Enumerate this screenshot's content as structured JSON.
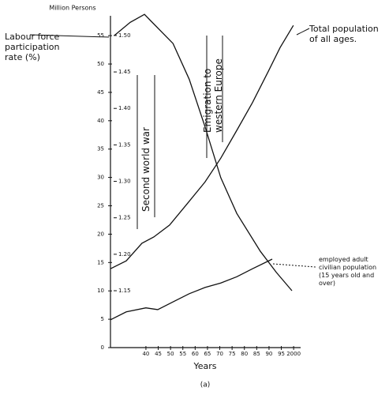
{
  "chart_data": {
    "type": "line",
    "y_label": "Million Persons",
    "x_label": "Years",
    "caption": "(a)",
    "event_labels": [
      "Second world war",
      "Emigration to western Europe"
    ],
    "xlim": [
      1925.6,
      2003
    ],
    "xticks": [
      {
        "value": 1940,
        "label": "40"
      },
      {
        "value": 1945,
        "label": "45"
      },
      {
        "value": 1950,
        "label": "50"
      },
      {
        "value": 1955,
        "label": "55"
      },
      {
        "value": 1960,
        "label": "60"
      },
      {
        "value": 1965,
        "label": "65"
      },
      {
        "value": 1970,
        "label": "70"
      },
      {
        "value": 1975,
        "label": "75"
      },
      {
        "value": 1980,
        "label": "80"
      },
      {
        "value": 1985,
        "label": "85"
      },
      {
        "value": 1990,
        "label": "90"
      },
      {
        "value": 1995,
        "label": "95"
      },
      2000
    ],
    "ylim": [
      0,
      58.5
    ],
    "yticks": [
      0,
      5,
      10,
      15,
      20,
      25,
      30,
      35,
      40,
      45,
      50,
      55
    ],
    "y2lim": [
      1.072,
      1.527
    ],
    "y2ticks": [
      {
        "value": 1.5,
        "label": "1.50"
      },
      1.45,
      {
        "value": 1.4,
        "label": "1.40"
      },
      1.35,
      {
        "value": 1.3,
        "label": "1.30"
      },
      1.25,
      {
        "value": 1.2,
        "label": "1.20"
      },
      1.15
    ],
    "series": [
      {
        "name": "Labour force participation rate (%)",
        "color": "#111",
        "axis": "y2",
        "x": [
          1927.2,
          1933.6,
          1939.4,
          1942,
          1951,
          1957.6,
          1964,
          1970.4,
          1976.9,
          1986.5,
          1993,
          1999.3
        ],
        "values": [
          1.5,
          1.518,
          1.529,
          1.52,
          1.489,
          1.44,
          1.375,
          1.305,
          1.256,
          1.204,
          1.175,
          1.15
        ]
      },
      {
        "name": "Total population of all ages.",
        "color": "#111",
        "x": [
          1925.6,
          1932,
          1938.4,
          1943.2,
          1949.6,
          1957.6,
          1964,
          1970.4,
          1976.9,
          1983.3,
          1989.7,
          1994.5,
          1999.9
        ],
        "values": [
          13.9,
          15.3,
          18.4,
          19.5,
          21.6,
          25.8,
          29.2,
          33.4,
          38.3,
          43.2,
          48.7,
          52.9,
          56.8
        ]
      },
      {
        "name": "employed adult civilian population (15 years old and over)",
        "color": "#111",
        "x": [
          1925.6,
          1932,
          1940,
          1944.8,
          1951.2,
          1957.6,
          1964,
          1970.4,
          1976.9,
          1983.3,
          1991.3
        ],
        "values": [
          4.9,
          6.3,
          7.0,
          6.7,
          8.1,
          9.5,
          10.6,
          11.4,
          12.5,
          13.9,
          15.6
        ]
      }
    ]
  }
}
